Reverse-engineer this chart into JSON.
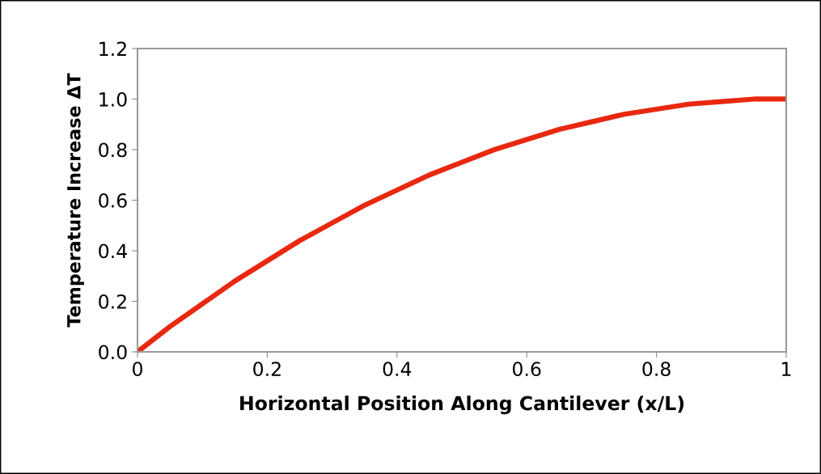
{
  "chart_data": {
    "type": "line",
    "xlabel": "Horizontal Position Along Cantilever (x/L)",
    "ylabel": "Temperature Increase ΔT",
    "x": [
      0,
      0.05,
      0.1,
      0.15,
      0.2,
      0.25,
      0.3,
      0.35,
      0.4,
      0.45,
      0.5,
      0.55,
      0.6,
      0.65,
      0.7,
      0.75,
      0.8,
      0.85,
      0.9,
      0.95,
      1.0
    ],
    "series": [
      {
        "color": "#e8280f",
        "values": [
          0,
          0.1,
          0.19,
          0.28,
          0.36,
          0.44,
          0.51,
          0.58,
          0.64,
          0.7,
          0.75,
          0.8,
          0.84,
          0.88,
          0.91,
          0.94,
          0.96,
          0.98,
          0.99,
          1.0,
          1.0
        ]
      }
    ],
    "xlim": [
      0,
      1
    ],
    "ylim": [
      0,
      1.2
    ],
    "xticks": [
      0,
      0.2,
      0.4,
      0.6,
      0.8,
      1
    ],
    "yticks": [
      {
        "value": 0,
        "label": "0.0"
      },
      {
        "value": 0.2,
        "label": "0.2"
      },
      {
        "value": 0.4,
        "label": "0.4"
      },
      {
        "value": 0.6,
        "label": "0.6"
      },
      {
        "value": 0.8,
        "label": "0.8"
      },
      {
        "value": 1.0,
        "label": "1.0"
      },
      {
        "value": 1.2,
        "label": "1.2"
      }
    ],
    "grid": false,
    "legend": false,
    "marker": "none",
    "line_style": "solid"
  }
}
